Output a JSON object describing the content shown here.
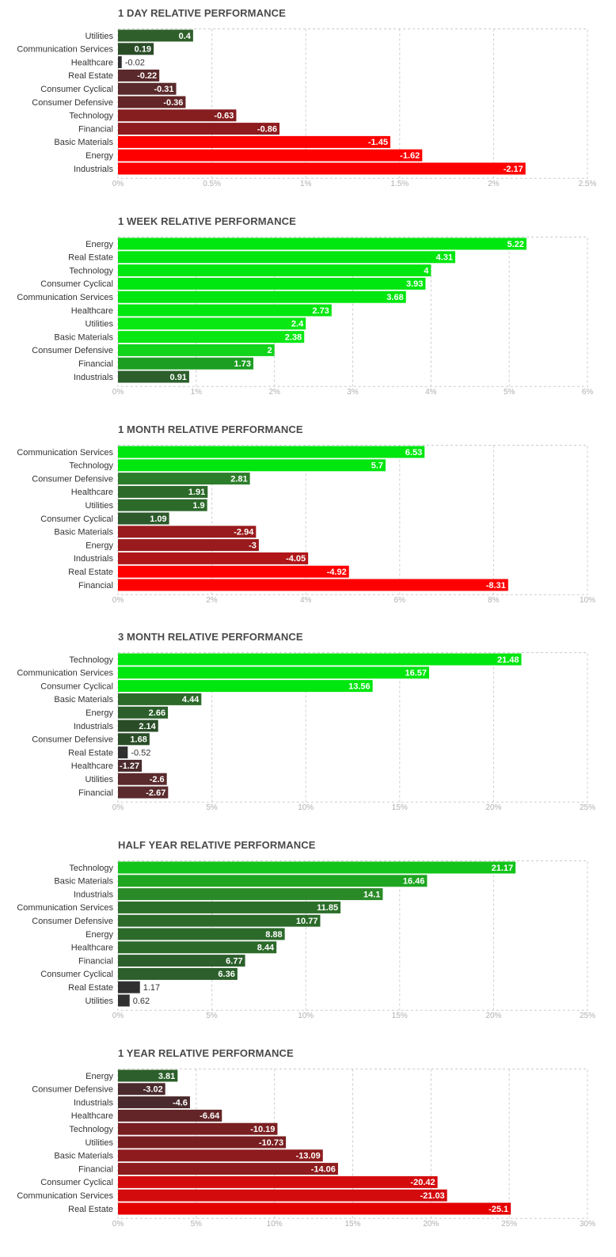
{
  "chart_data": [
    {
      "type": "bar",
      "title": "1 DAY RELATIVE PERFORMANCE",
      "categories": [
        "Utilities",
        "Communication Services",
        "Healthcare",
        "Real Estate",
        "Consumer Cyclical",
        "Consumer Defensive",
        "Technology",
        "Financial",
        "Basic Materials",
        "Energy",
        "Industrials"
      ],
      "values": [
        0.4,
        0.19,
        -0.02,
        -0.22,
        -0.31,
        -0.36,
        -0.63,
        -0.86,
        -1.45,
        -1.62,
        -2.17
      ],
      "value_labels": [
        "0.4",
        "0.19",
        "-0.02",
        "-0.22",
        "-0.31",
        "-0.36",
        "-0.63",
        "-0.86",
        "-1.45",
        "-1.62",
        "-2.17"
      ],
      "xlim": [
        0,
        2.5
      ],
      "xticks": [
        "0%",
        "0.5%",
        "1%",
        "1.5%",
        "2%",
        "2.5%"
      ],
      "bar_length": "absolute value",
      "orientation": "horizontal",
      "grid": true,
      "bar_colors": [
        "#2f5f2b",
        "#2a4d27",
        "#303030",
        "#59292b",
        "#5a2a2c",
        "#632527",
        "#861d1e",
        "#8e1b1d",
        "#ff0000",
        "#ff0000",
        "#ff0000"
      ]
    },
    {
      "type": "bar",
      "title": "1 WEEK RELATIVE PERFORMANCE",
      "categories": [
        "Energy",
        "Real Estate",
        "Technology",
        "Consumer Cyclical",
        "Communication Services",
        "Healthcare",
        "Utilities",
        "Basic Materials",
        "Consumer Defensive",
        "Financial",
        "Industrials"
      ],
      "values": [
        5.22,
        4.31,
        4,
        3.93,
        3.68,
        2.73,
        2.4,
        2.38,
        2,
        1.73,
        0.91
      ],
      "value_labels": [
        "5.22",
        "4.31",
        "4",
        "3.93",
        "3.68",
        "2.73",
        "2.4",
        "2.38",
        "2",
        "1.73",
        "0.91"
      ],
      "xlim": [
        0,
        6
      ],
      "xticks": [
        "0%",
        "1%",
        "2%",
        "3%",
        "4%",
        "5%",
        "6%"
      ],
      "bar_length": "absolute value",
      "orientation": "horizontal",
      "grid": true,
      "bar_colors": [
        "#00e60f",
        "#00e60f",
        "#00e60f",
        "#00e60f",
        "#00e60f",
        "#00e60f",
        "#0ae814",
        "#0ae814",
        "#12d41b",
        "#1c9e22",
        "#2c5f2b"
      ]
    },
    {
      "type": "bar",
      "title": "1 MONTH RELATIVE PERFORMANCE",
      "categories": [
        "Communication Services",
        "Technology",
        "Consumer Defensive",
        "Healthcare",
        "Utilities",
        "Consumer Cyclical",
        "Basic Materials",
        "Energy",
        "Industrials",
        "Real Estate",
        "Financial"
      ],
      "values": [
        6.53,
        5.7,
        2.81,
        1.91,
        1.9,
        1.09,
        -2.94,
        -3,
        -4.05,
        -4.92,
        -8.31
      ],
      "value_labels": [
        "6.53",
        "5.7",
        "2.81",
        "1.91",
        "1.9",
        "1.09",
        "-2.94",
        "-3",
        "-4.05",
        "-4.92",
        "-8.31"
      ],
      "xlim": [
        0,
        10
      ],
      "xticks": [
        "0%",
        "2%",
        "4%",
        "6%",
        "8%",
        "10%"
      ],
      "bar_length": "absolute value",
      "orientation": "horizontal",
      "grid": true,
      "bar_colors": [
        "#00e60f",
        "#00e60f",
        "#2c7d2a",
        "#2c6a2a",
        "#2c6a2a",
        "#2c5a2a",
        "#991b1d",
        "#991b1d",
        "#b01618",
        "#ff0000",
        "#ff0000"
      ]
    },
    {
      "type": "bar",
      "title": "3 MONTH RELATIVE PERFORMANCE",
      "categories": [
        "Technology",
        "Communication Services",
        "Consumer Cyclical",
        "Basic Materials",
        "Energy",
        "Industrials",
        "Consumer Defensive",
        "Real Estate",
        "Healthcare",
        "Utilities",
        "Financial"
      ],
      "values": [
        21.48,
        16.57,
        13.56,
        4.44,
        2.66,
        2.14,
        1.68,
        -0.52,
        -1.27,
        -2.6,
        -2.67
      ],
      "value_labels": [
        "21.48",
        "16.57",
        "13.56",
        "4.44",
        "2.66",
        "2.14",
        "1.68",
        "-0.52",
        "-1.27",
        "-2.6",
        "-2.67"
      ],
      "xlim": [
        0,
        25
      ],
      "xticks": [
        "0%",
        "5%",
        "10%",
        "15%",
        "20%",
        "25%"
      ],
      "bar_length": "absolute value",
      "orientation": "horizontal",
      "grid": true,
      "bar_colors": [
        "#00e60f",
        "#00e60f",
        "#00e60f",
        "#2c6a2a",
        "#2c5f2b",
        "#2a4d27",
        "#2a4d27",
        "#303030",
        "#4a2a2c",
        "#5a2a2c",
        "#5a2a2c"
      ]
    },
    {
      "type": "bar",
      "title": "HALF YEAR RELATIVE PERFORMANCE",
      "categories": [
        "Technology",
        "Basic Materials",
        "Industrials",
        "Communication Services",
        "Consumer Defensive",
        "Energy",
        "Healthcare",
        "Financial",
        "Consumer Cyclical",
        "Real Estate",
        "Utilities"
      ],
      "values": [
        21.17,
        16.46,
        14.1,
        11.85,
        10.77,
        8.88,
        8.44,
        6.77,
        6.36,
        1.17,
        0.62
      ],
      "value_labels": [
        "21.17",
        "16.46",
        "14.1",
        "11.85",
        "10.77",
        "8.88",
        "8.44",
        "6.77",
        "6.36",
        "1.17",
        "0.62"
      ],
      "xlim": [
        0,
        25
      ],
      "xticks": [
        "0%",
        "5%",
        "10%",
        "15%",
        "20%",
        "25%"
      ],
      "bar_length": "absolute value",
      "orientation": "horizontal",
      "grid": true,
      "bar_colors": [
        "#12c41b",
        "#1ea622",
        "#2a8a28",
        "#2c6f2a",
        "#2c6a2a",
        "#2c6a2a",
        "#2c6a2a",
        "#2c5f2b",
        "#2c5f2b",
        "#303030",
        "#303030"
      ]
    },
    {
      "type": "bar",
      "title": "1 YEAR RELATIVE PERFORMANCE",
      "categories": [
        "Energy",
        "Consumer Defensive",
        "Industrials",
        "Healthcare",
        "Technology",
        "Utilities",
        "Basic Materials",
        "Financial",
        "Consumer Cyclical",
        "Communication Services",
        "Real Estate"
      ],
      "values": [
        3.81,
        -3.02,
        -4.6,
        -6.64,
        -10.19,
        -10.73,
        -13.09,
        -14.06,
        -20.42,
        -21.03,
        -25.1
      ],
      "value_labels": [
        "3.81",
        "-3.02",
        "-4.6",
        "-6.64",
        "-10.19",
        "-10.73",
        "-13.09",
        "-14.06",
        "-20.42",
        "-21.03",
        "-25.1"
      ],
      "xlim": [
        0,
        30
      ],
      "xticks": [
        "0%",
        "5%",
        "10%",
        "15%",
        "20%",
        "25%",
        "30%"
      ],
      "bar_length": "absolute value",
      "orientation": "horizontal",
      "grid": true,
      "bar_colors": [
        "#2c5f2b",
        "#4a2a2c",
        "#4a2a2c",
        "#632527",
        "#7a1f21",
        "#7a1f21",
        "#8e1b1d",
        "#8e1b1d",
        "#d40b0d",
        "#d40b0d",
        "#e50000"
      ]
    }
  ]
}
